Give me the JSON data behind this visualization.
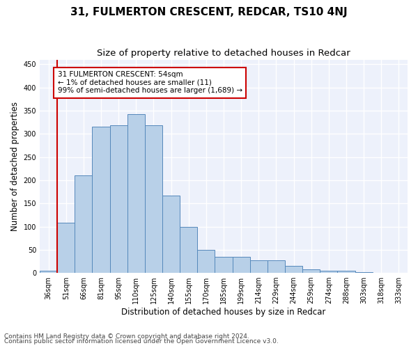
{
  "title": "31, FULMERTON CRESCENT, REDCAR, TS10 4NJ",
  "subtitle": "Size of property relative to detached houses in Redcar",
  "xlabel": "Distribution of detached houses by size in Redcar",
  "ylabel": "Number of detached properties",
  "categories": [
    "36sqm",
    "51sqm",
    "66sqm",
    "81sqm",
    "95sqm",
    "110sqm",
    "125sqm",
    "140sqm",
    "155sqm",
    "170sqm",
    "185sqm",
    "199sqm",
    "214sqm",
    "229sqm",
    "244sqm",
    "259sqm",
    "274sqm",
    "288sqm",
    "303sqm",
    "318sqm",
    "333sqm"
  ],
  "values": [
    5,
    108,
    210,
    315,
    318,
    343,
    318,
    167,
    99,
    50,
    35,
    35,
    27,
    27,
    16,
    8,
    5,
    5,
    2,
    1,
    1
  ],
  "bar_color": "#b8d0e8",
  "bar_edge_color": "#5588bb",
  "annotation_text": "31 FULMERTON CRESCENT: 54sqm\n← 1% of detached houses are smaller (11)\n99% of semi-detached houses are larger (1,689) →",
  "annotation_box_color": "white",
  "annotation_box_edge_color": "#cc0000",
  "highlight_line_color": "#cc0000",
  "ylim": [
    0,
    460
  ],
  "yticks": [
    0,
    50,
    100,
    150,
    200,
    250,
    300,
    350,
    400,
    450
  ],
  "background_color": "#edf1fb",
  "grid_color": "white",
  "title_fontsize": 11,
  "subtitle_fontsize": 9.5,
  "ylabel_fontsize": 8.5,
  "xlabel_fontsize": 8.5,
  "tick_fontsize": 7,
  "annotation_fontsize": 7.5,
  "footer_fontsize": 6.5,
  "footer_line1": "Contains HM Land Registry data © Crown copyright and database right 2024.",
  "footer_line2": "Contains public sector information licensed under the Open Government Licence v3.0."
}
